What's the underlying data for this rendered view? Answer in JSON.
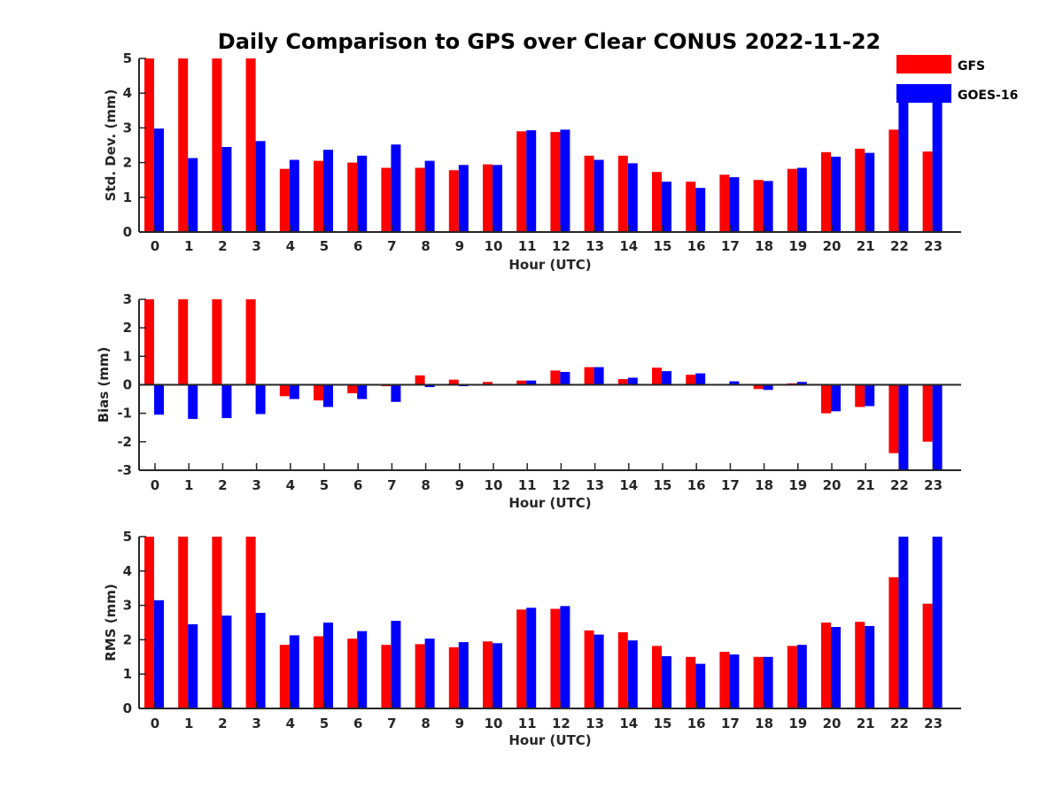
{
  "figure": {
    "title": "Daily Comparison to GPS over Clear CONUS 2022-11-22"
  },
  "legend": {
    "items": [
      {
        "name": "GFS",
        "color": "#ff0000"
      },
      {
        "name": "GOES-16",
        "color": "#0000ff"
      }
    ]
  },
  "chart_data": [
    {
      "type": "bar",
      "id": "std",
      "title": "Daily Comparison to GPS over Clear CONUS 2022-11-22",
      "xlabel": "Hour (UTC)",
      "ylabel": "Std. Dev. (mm)",
      "ylim": [
        0,
        5
      ],
      "yticks": [
        0,
        1,
        2,
        3,
        4,
        5
      ],
      "categories": [
        "0",
        "1",
        "2",
        "3",
        "4",
        "5",
        "6",
        "7",
        "8",
        "9",
        "10",
        "11",
        "12",
        "13",
        "14",
        "15",
        "16",
        "17",
        "18",
        "19",
        "20",
        "21",
        "22",
        "23"
      ],
      "series": [
        {
          "name": "GFS",
          "color": "#ff0000",
          "values": [
            5.0,
            5.0,
            5.0,
            5.0,
            1.82,
            2.05,
            2.0,
            1.85,
            1.85,
            1.78,
            1.95,
            2.9,
            2.88,
            2.2,
            2.2,
            1.73,
            1.45,
            1.65,
            1.5,
            1.82,
            2.3,
            2.4,
            2.95,
            2.32
          ]
        },
        {
          "name": "GOES-16",
          "color": "#0000ff",
          "values": [
            2.98,
            2.13,
            2.45,
            2.62,
            2.08,
            2.37,
            2.2,
            2.52,
            2.05,
            1.93,
            1.93,
            2.93,
            2.95,
            2.08,
            1.98,
            1.45,
            1.27,
            1.58,
            1.47,
            1.85,
            2.17,
            2.28,
            4.15,
            3.95
          ]
        }
      ]
    },
    {
      "type": "bar",
      "id": "bias",
      "xlabel": "Hour (UTC)",
      "ylabel": "Bias (mm)",
      "ylim": [
        -3,
        3
      ],
      "yticks": [
        -3,
        -2,
        -1,
        0,
        1,
        2,
        3
      ],
      "categories": [
        "0",
        "1",
        "2",
        "3",
        "4",
        "5",
        "6",
        "7",
        "8",
        "9",
        "10",
        "11",
        "12",
        "13",
        "14",
        "15",
        "16",
        "17",
        "18",
        "19",
        "20",
        "21",
        "22",
        "23"
      ],
      "series": [
        {
          "name": "GFS",
          "color": "#ff0000",
          "values": [
            3.0,
            3.0,
            3.0,
            3.0,
            -0.4,
            -0.55,
            -0.3,
            -0.05,
            0.33,
            0.18,
            0.1,
            0.15,
            0.5,
            0.62,
            0.2,
            0.6,
            0.35,
            0.0,
            -0.15,
            0.05,
            -1.0,
            -0.78,
            -2.4,
            -2.0
          ]
        },
        {
          "name": "GOES-16",
          "color": "#0000ff",
          "values": [
            -1.05,
            -1.2,
            -1.17,
            -1.03,
            -0.5,
            -0.78,
            -0.5,
            -0.6,
            -0.08,
            -0.05,
            0.03,
            0.15,
            0.45,
            0.62,
            0.25,
            0.48,
            0.4,
            0.12,
            -0.18,
            0.1,
            -0.93,
            -0.75,
            -3.0,
            -3.0
          ]
        }
      ]
    },
    {
      "type": "bar",
      "id": "rms",
      "xlabel": "Hour (UTC)",
      "ylabel": "RMS (mm)",
      "ylim": [
        0,
        5
      ],
      "yticks": [
        0,
        1,
        2,
        3,
        4,
        5
      ],
      "categories": [
        "0",
        "1",
        "2",
        "3",
        "4",
        "5",
        "6",
        "7",
        "8",
        "9",
        "10",
        "11",
        "12",
        "13",
        "14",
        "15",
        "16",
        "17",
        "18",
        "19",
        "20",
        "21",
        "22",
        "23"
      ],
      "series": [
        {
          "name": "GFS",
          "color": "#ff0000",
          "values": [
            5.0,
            5.0,
            5.0,
            5.0,
            1.85,
            2.1,
            2.03,
            1.85,
            1.87,
            1.78,
            1.95,
            2.88,
            2.9,
            2.27,
            2.22,
            1.82,
            1.5,
            1.65,
            1.5,
            1.82,
            2.5,
            2.52,
            3.82,
            3.05
          ]
        },
        {
          "name": "GOES-16",
          "color": "#0000ff",
          "values": [
            3.15,
            2.45,
            2.7,
            2.78,
            2.13,
            2.5,
            2.25,
            2.55,
            2.03,
            1.93,
            1.9,
            2.93,
            2.98,
            2.15,
            1.98,
            1.52,
            1.3,
            1.57,
            1.5,
            1.85,
            2.37,
            2.4,
            5.0,
            5.0
          ]
        }
      ]
    }
  ]
}
